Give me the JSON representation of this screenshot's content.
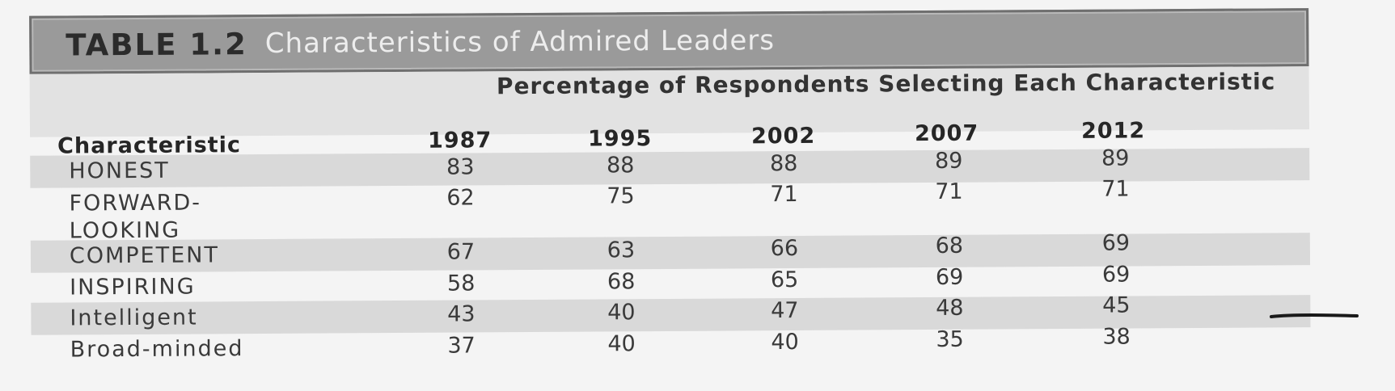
{
  "table": {
    "label": "TABLE 1.2",
    "title": "Characteristics of Admired Leaders",
    "group_header": "Percentage of Respondents Selecting Each Characteristic",
    "columns": [
      "Characteristic",
      "1987",
      "1995",
      "2002",
      "2007",
      "2012"
    ],
    "rows": [
      {
        "label": "HONEST",
        "values": [
          "83",
          "88",
          "88",
          "89",
          "89"
        ]
      },
      {
        "label": "FORWARD-LOOKING",
        "label_lines": [
          "FORWARD-",
          "LOOKING"
        ],
        "values": [
          "62",
          "75",
          "71",
          "71",
          "71"
        ]
      },
      {
        "label": "COMPETENT",
        "values": [
          "67",
          "63",
          "66",
          "68",
          "69"
        ]
      },
      {
        "label": "INSPIRING",
        "values": [
          "58",
          "68",
          "65",
          "69",
          "69"
        ]
      },
      {
        "label": "Intelligent",
        "values": [
          "43",
          "40",
          "47",
          "48",
          "45"
        ]
      },
      {
        "label": "Broad-minded",
        "values": [
          "37",
          "40",
          "40",
          "35",
          "38"
        ]
      }
    ]
  },
  "colors": {
    "title_bar": "#9a9a9a",
    "shaded_row": "#d9d9d9",
    "pen_mark": "#1a1a1a"
  }
}
